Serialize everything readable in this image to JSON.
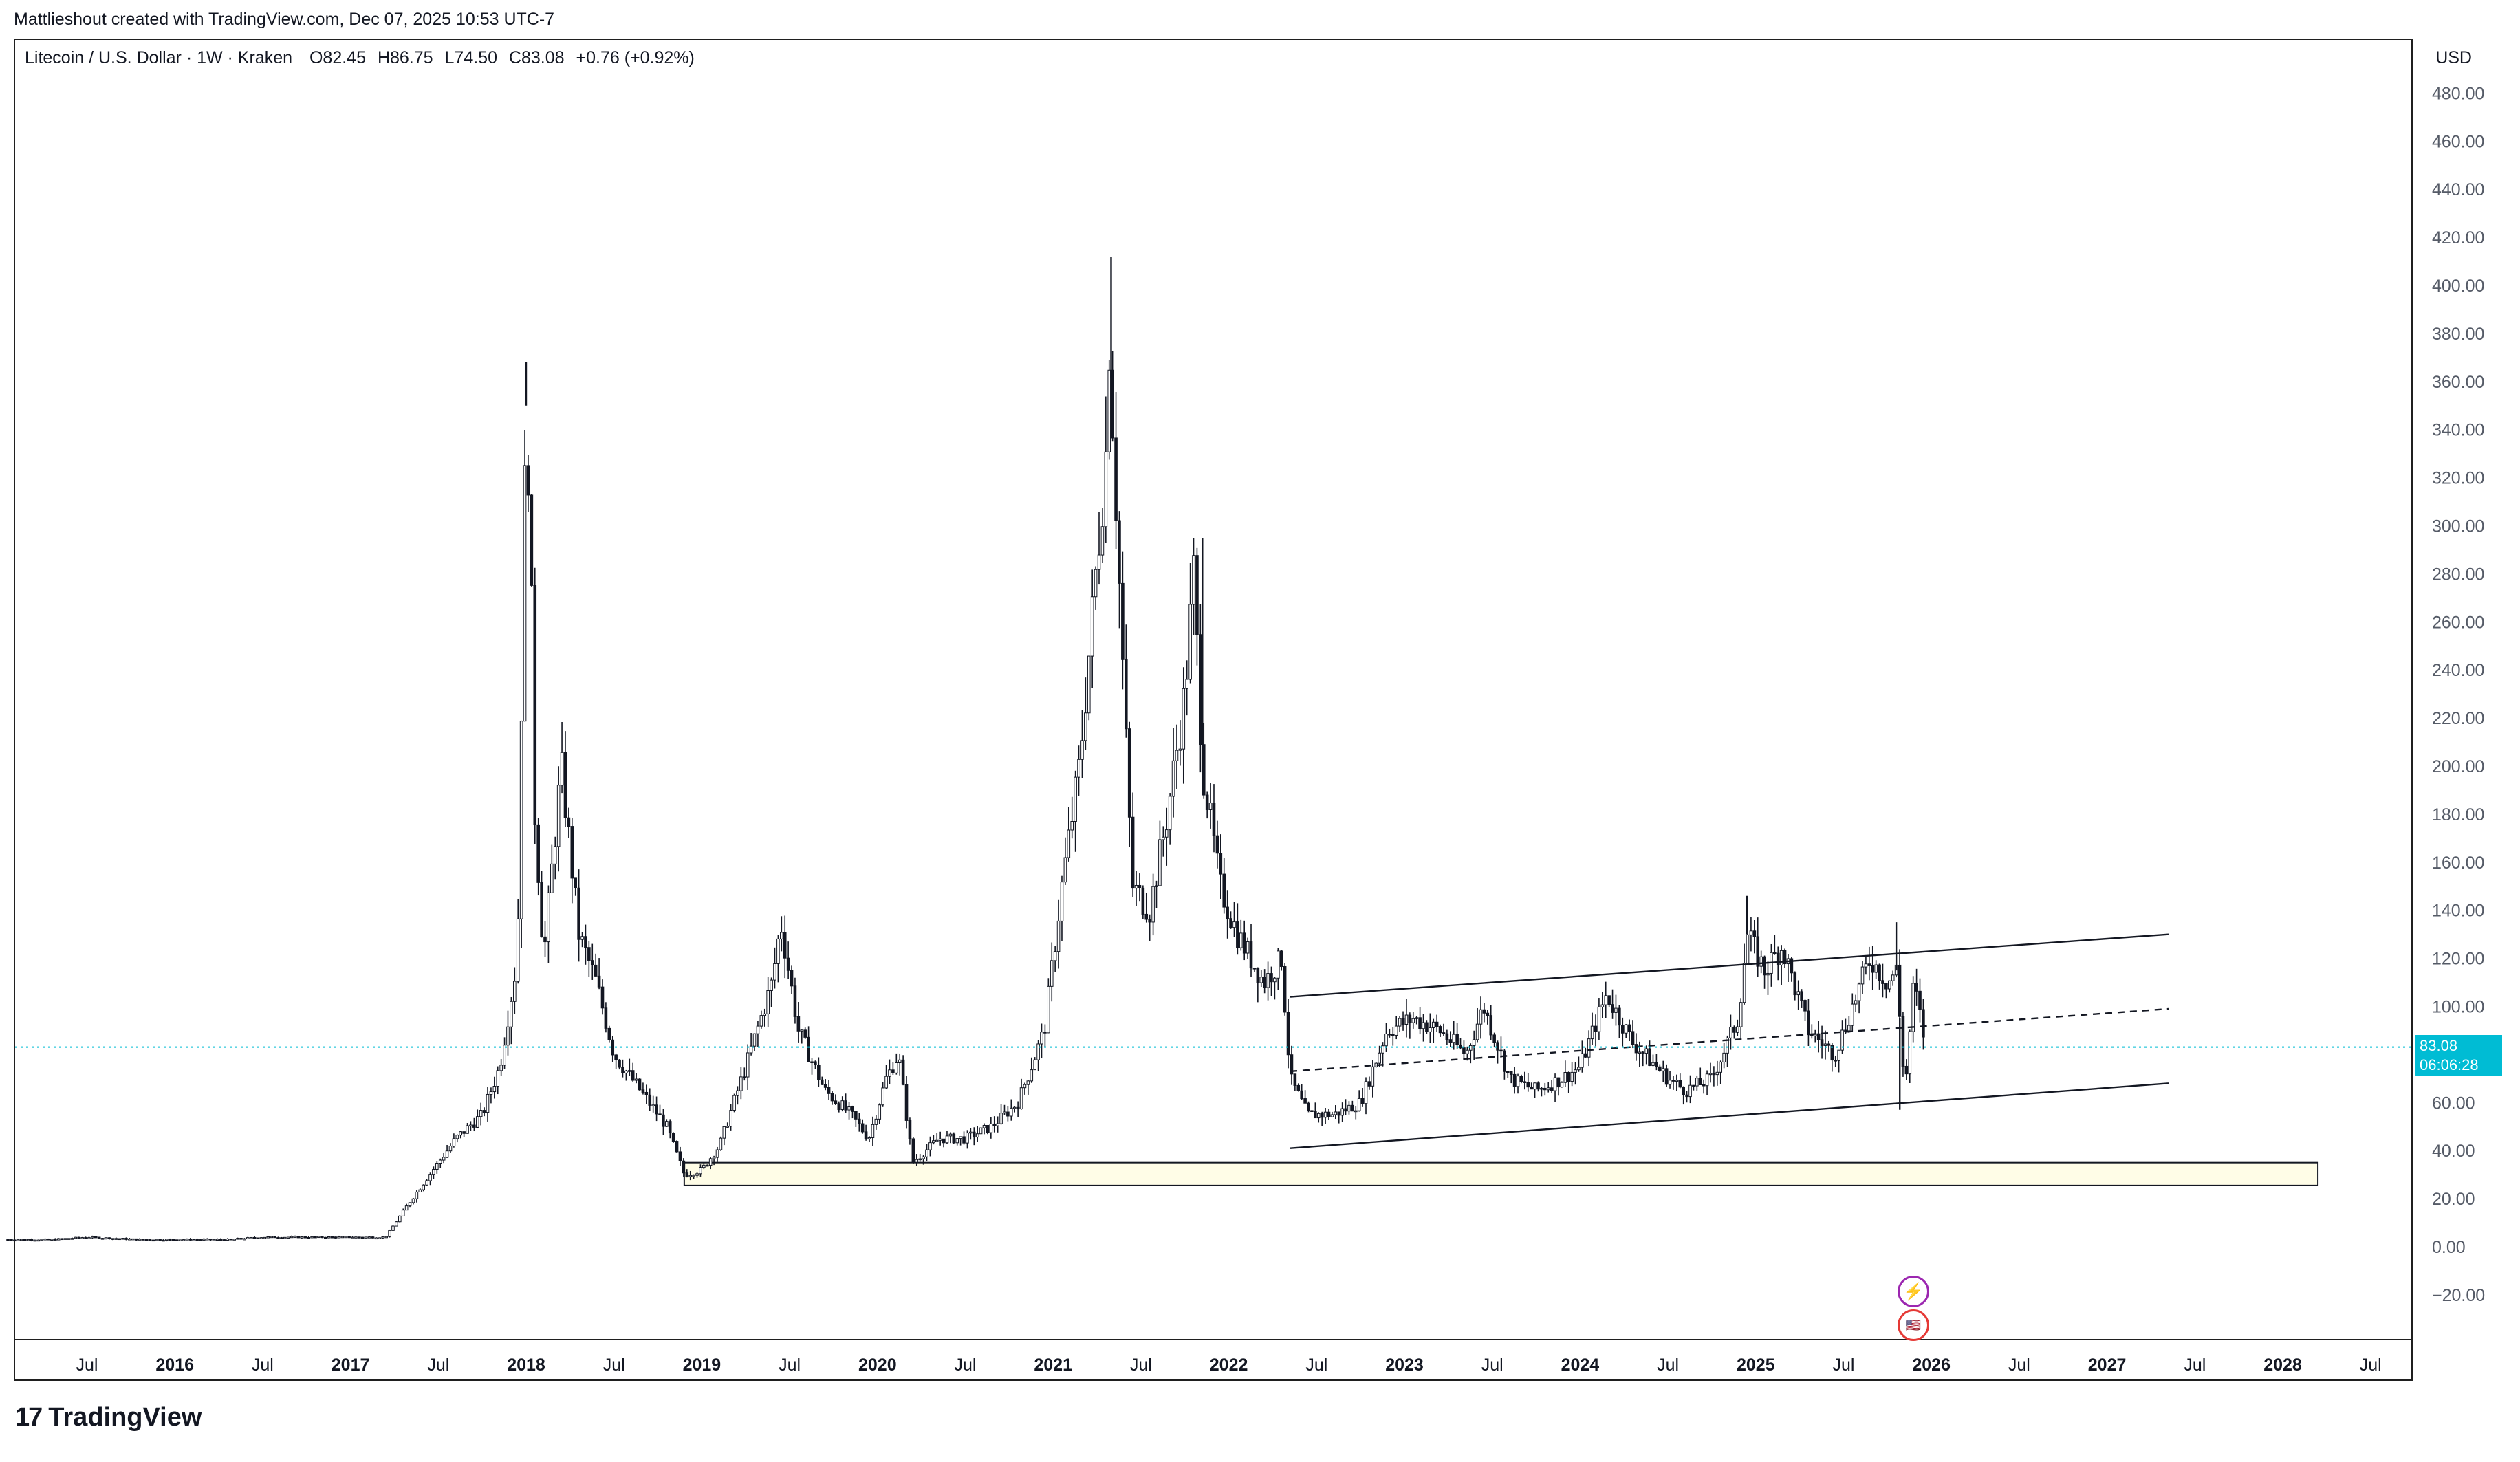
{
  "header": {
    "credit": "Mattlieshout created with TradingView.com, Dec 07, 2025 10:53 UTC-7"
  },
  "legend": {
    "symbol": "Litecoin / U.S. Dollar · 1W · Kraken",
    "o_label": "O",
    "o_value": "82.45",
    "h_label": "H",
    "h_value": "86.75",
    "l_label": "L",
    "l_value": "74.50",
    "c_label": "C",
    "c_value": "83.08",
    "change": "+0.76 (+0.92%)"
  },
  "currency": "USD",
  "price_tag": {
    "price": "83.08",
    "countdown": "06:06:28"
  },
  "footer": {
    "brand": "TradingView"
  },
  "colors": {
    "candle": "#131722",
    "last_price_line": "#00bcd4",
    "support_zone": "#fffde7"
  },
  "icons": [
    "lightning-event-icon",
    "us-flag-event-icon"
  ],
  "chart_data": {
    "type": "candlestick",
    "title": "Litecoin / U.S. Dollar · 1W · Kraken",
    "ylabel": "USD",
    "ylim": [
      -30,
      490
    ],
    "yticks": [
      "480.00",
      "460.00",
      "440.00",
      "420.00",
      "400.00",
      "380.00",
      "360.00",
      "340.00",
      "320.00",
      "300.00",
      "280.00",
      "260.00",
      "240.00",
      "220.00",
      "200.00",
      "180.00",
      "160.00",
      "140.00",
      "120.00",
      "100.00",
      "80.00",
      "60.00",
      "40.00",
      "20.00",
      "0.00",
      "−20.00"
    ],
    "ytick_values": [
      480,
      460,
      440,
      420,
      400,
      380,
      360,
      340,
      320,
      300,
      280,
      260,
      240,
      220,
      200,
      180,
      160,
      140,
      120,
      100,
      80,
      60,
      40,
      20,
      0,
      -20
    ],
    "xticks": [
      {
        "label": "Jul",
        "t": 2015.5,
        "bold": false
      },
      {
        "label": "2016",
        "t": 2016.0,
        "bold": true
      },
      {
        "label": "Jul",
        "t": 2016.5,
        "bold": false
      },
      {
        "label": "2017",
        "t": 2017.0,
        "bold": true
      },
      {
        "label": "Jul",
        "t": 2017.5,
        "bold": false
      },
      {
        "label": "2018",
        "t": 2018.0,
        "bold": true
      },
      {
        "label": "Jul",
        "t": 2018.5,
        "bold": false
      },
      {
        "label": "2019",
        "t": 2019.0,
        "bold": true
      },
      {
        "label": "Jul",
        "t": 2019.5,
        "bold": false
      },
      {
        "label": "2020",
        "t": 2020.0,
        "bold": true
      },
      {
        "label": "Jul",
        "t": 2020.5,
        "bold": false
      },
      {
        "label": "2021",
        "t": 2021.0,
        "bold": true
      },
      {
        "label": "Jul",
        "t": 2021.5,
        "bold": false
      },
      {
        "label": "2022",
        "t": 2022.0,
        "bold": true
      },
      {
        "label": "Jul",
        "t": 2022.5,
        "bold": false
      },
      {
        "label": "2023",
        "t": 2023.0,
        "bold": true
      },
      {
        "label": "Jul",
        "t": 2023.5,
        "bold": false
      },
      {
        "label": "2024",
        "t": 2024.0,
        "bold": true
      },
      {
        "label": "Jul",
        "t": 2024.5,
        "bold": false
      },
      {
        "label": "2025",
        "t": 2025.0,
        "bold": true
      },
      {
        "label": "Jul",
        "t": 2025.5,
        "bold": false
      },
      {
        "label": "2026",
        "t": 2026.0,
        "bold": true
      },
      {
        "label": "Jul",
        "t": 2026.5,
        "bold": false
      },
      {
        "label": "2027",
        "t": 2027.0,
        "bold": true
      },
      {
        "label": "Jul",
        "t": 2027.5,
        "bold": false
      },
      {
        "label": "2028",
        "t": 2028.0,
        "bold": true
      },
      {
        "label": "Jul",
        "t": 2028.5,
        "bold": false
      }
    ],
    "xlim": [
      2015.05,
      2029.2
    ],
    "last_price": 83.08,
    "price_path": [
      [
        2015.05,
        3
      ],
      [
        2015.3,
        3
      ],
      [
        2015.5,
        4
      ],
      [
        2015.8,
        3
      ],
      [
        2016.3,
        3
      ],
      [
        2016.5,
        4
      ],
      [
        2016.8,
        4
      ],
      [
        2017.2,
        4
      ],
      [
        2017.35,
        20
      ],
      [
        2017.45,
        30
      ],
      [
        2017.6,
        45
      ],
      [
        2017.75,
        55
      ],
      [
        2017.85,
        75
      ],
      [
        2017.95,
        120
      ],
      [
        2018.0,
        350
      ],
      [
        2018.02,
        310
      ],
      [
        2018.05,
        180
      ],
      [
        2018.1,
        120
      ],
      [
        2018.2,
        200
      ],
      [
        2018.3,
        130
      ],
      [
        2018.4,
        110
      ],
      [
        2018.5,
        80
      ],
      [
        2018.65,
        65
      ],
      [
        2018.8,
        50
      ],
      [
        2018.9,
        30
      ],
      [
        2019.0,
        32
      ],
      [
        2019.1,
        42
      ],
      [
        2019.25,
        75
      ],
      [
        2019.4,
        110
      ],
      [
        2019.45,
        135
      ],
      [
        2019.55,
        90
      ],
      [
        2019.7,
        65
      ],
      [
        2019.85,
        55
      ],
      [
        2019.95,
        45
      ],
      [
        2020.05,
        70
      ],
      [
        2020.12,
        80
      ],
      [
        2020.2,
        35
      ],
      [
        2020.35,
        45
      ],
      [
        2020.5,
        45
      ],
      [
        2020.65,
        50
      ],
      [
        2020.8,
        60
      ],
      [
        2020.95,
        90
      ],
      [
        2021.05,
        150
      ],
      [
        2021.15,
        200
      ],
      [
        2021.22,
        260
      ],
      [
        2021.3,
        330
      ],
      [
        2021.32,
        380
      ],
      [
        2021.38,
        270
      ],
      [
        2021.45,
        150
      ],
      [
        2021.55,
        140
      ],
      [
        2021.65,
        180
      ],
      [
        2021.75,
        230
      ],
      [
        2021.8,
        280
      ],
      [
        2021.85,
        200
      ],
      [
        2021.95,
        150
      ],
      [
        2022.05,
        130
      ],
      [
        2022.2,
        110
      ],
      [
        2022.3,
        120
      ],
      [
        2022.35,
        70
      ],
      [
        2022.45,
        55
      ],
      [
        2022.6,
        55
      ],
      [
        2022.75,
        60
      ],
      [
        2022.9,
        90
      ],
      [
        2023.05,
        95
      ],
      [
        2023.2,
        90
      ],
      [
        2023.35,
        80
      ],
      [
        2023.45,
        100
      ],
      [
        2023.6,
        70
      ],
      [
        2023.75,
        65
      ],
      [
        2023.9,
        70
      ],
      [
        2024.0,
        75
      ],
      [
        2024.15,
        105
      ],
      [
        2024.3,
        85
      ],
      [
        2024.5,
        70
      ],
      [
        2024.6,
        65
      ],
      [
        2024.75,
        70
      ],
      [
        2024.9,
        95
      ],
      [
        2024.95,
        130
      ],
      [
        2025.05,
        115
      ],
      [
        2025.15,
        125
      ],
      [
        2025.3,
        90
      ],
      [
        2025.45,
        80
      ],
      [
        2025.55,
        100
      ],
      [
        2025.65,
        120
      ],
      [
        2025.75,
        110
      ],
      [
        2025.8,
        115
      ],
      [
        2025.85,
        65
      ],
      [
        2025.9,
        110
      ],
      [
        2025.95,
        90
      ],
      [
        2025.97,
        83.08
      ]
    ],
    "spikes": [
      {
        "t": 2018.0,
        "high": 368
      },
      {
        "t": 2021.33,
        "high": 412
      },
      {
        "t": 2021.85,
        "high": 295
      },
      {
        "t": 2025.82,
        "low": 57
      },
      {
        "t": 2024.95,
        "high": 146
      },
      {
        "t": 2025.8,
        "high": 135
      }
    ],
    "channel": {
      "upper": [
        [
          2022.35,
          104
        ],
        [
          2027.35,
          130
        ]
      ],
      "lower": [
        [
          2022.35,
          41
        ],
        [
          2027.35,
          68
        ]
      ],
      "middle": [
        [
          2022.35,
          73
        ],
        [
          2027.35,
          99
        ]
      ]
    },
    "support_zone": {
      "t_start": 2018.9,
      "t_end": 2028.2,
      "low": 25.5,
      "high": 35
    }
  }
}
